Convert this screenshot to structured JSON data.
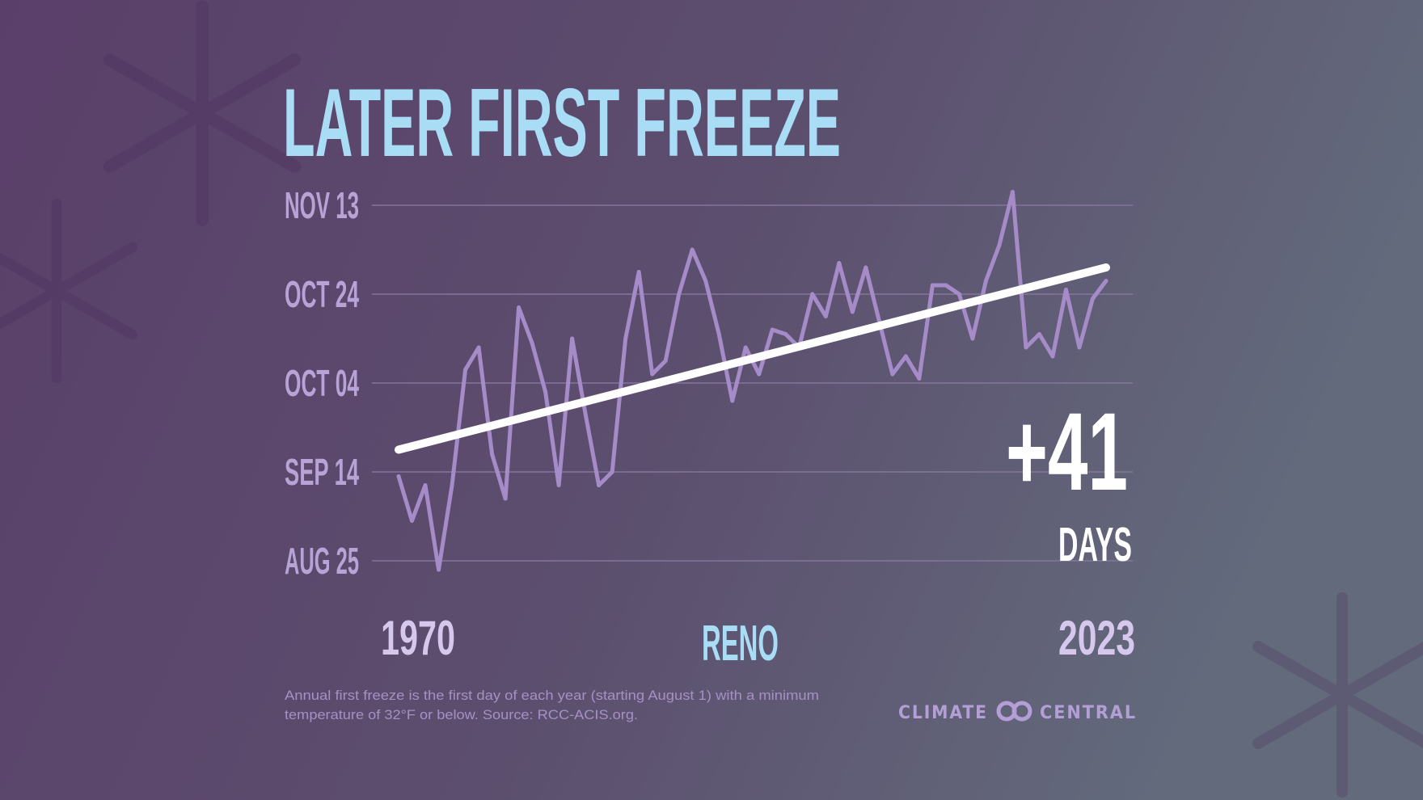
{
  "title": "LATER FIRST FREEZE",
  "location": "RENO",
  "start_year_label": "1970",
  "end_year_label": "2023",
  "change": {
    "value": "+41",
    "unit": "DAYS"
  },
  "footnote": {
    "line1": "Annual first freeze is the first day of each year (starting August 1) with a minimum",
    "line2": "temperature of 32°F or below. Source: RCC-ACIS.org."
  },
  "logo": {
    "left": "CLIMATE",
    "right": "CENTRAL"
  },
  "colors": {
    "title": "#a9dcf5",
    "series": "#a58bc8",
    "trend": "#ffffff",
    "tick_label": "#b8a3d6",
    "year_label": "#d6c8ec",
    "gridline": "#8c7ca3",
    "background_left": "#5a3f6a",
    "background_right": "#616479"
  },
  "chart_data": {
    "type": "line",
    "title": "LATER FIRST FREEZE",
    "xlabel": "",
    "ylabel": "",
    "xlim": [
      1970,
      2023
    ],
    "ylim": [
      "Aug 25",
      "Nov 13"
    ],
    "grid": true,
    "y_ticks": [
      "NOV 13",
      "OCT 24",
      "OCT 04",
      "SEP 14",
      "AUG 25"
    ],
    "y_tick_values": [
      "Nov 13",
      "Oct 24",
      "Oct 4",
      "Sep 14",
      "Aug 25"
    ],
    "x": [
      1970,
      1971,
      1972,
      1973,
      1974,
      1975,
      1976,
      1977,
      1978,
      1979,
      1980,
      1981,
      1982,
      1983,
      1984,
      1985,
      1986,
      1987,
      1988,
      1989,
      1990,
      1991,
      1992,
      1993,
      1994,
      1995,
      1996,
      1997,
      1998,
      1999,
      2000,
      2001,
      2002,
      2003,
      2004,
      2005,
      2006,
      2007,
      2008,
      2009,
      2010,
      2011,
      2012,
      2013,
      2014,
      2015,
      2016,
      2017,
      2018,
      2019,
      2020,
      2021,
      2022,
      2023
    ],
    "series": [
      {
        "values": [
          "Sep 13",
          "Sep 3",
          "Sep 11",
          "Aug 23",
          "Sep 11",
          "Oct 7",
          "Oct 12",
          "Sep 18",
          "Sep 8",
          "Oct 21",
          "Oct 13",
          "Oct 2",
          "Sep 11",
          "Oct 14",
          "Sep 27",
          "Sep 11",
          "Sep 14",
          "Oct 14",
          "Oct 29",
          "Oct 6",
          "Oct 9",
          "Oct 24",
          "Nov 3",
          "Oct 27",
          "Oct 15",
          "Sep 30",
          "Oct 12",
          "Oct 6",
          "Oct 16",
          "Oct 15",
          "Oct 12",
          "Oct 24",
          "Oct 19",
          "Oct 31",
          "Oct 20",
          "Oct 30",
          "Oct 18",
          "Oct 6",
          "Oct 10",
          "Oct 5",
          "Oct 26",
          "Oct 26",
          "Oct 24",
          "Oct 14",
          "Oct 27",
          "Nov 4",
          "Nov 16",
          "Oct 12",
          "Oct 15",
          "Oct 10",
          "Oct 25",
          "Oct 12",
          "Oct 23",
          "Oct 27"
        ]
      }
    ],
    "trend": {
      "start": [
        "1970",
        "Sep 19"
      ],
      "end": [
        "2023",
        "Oct 30"
      ]
    }
  }
}
